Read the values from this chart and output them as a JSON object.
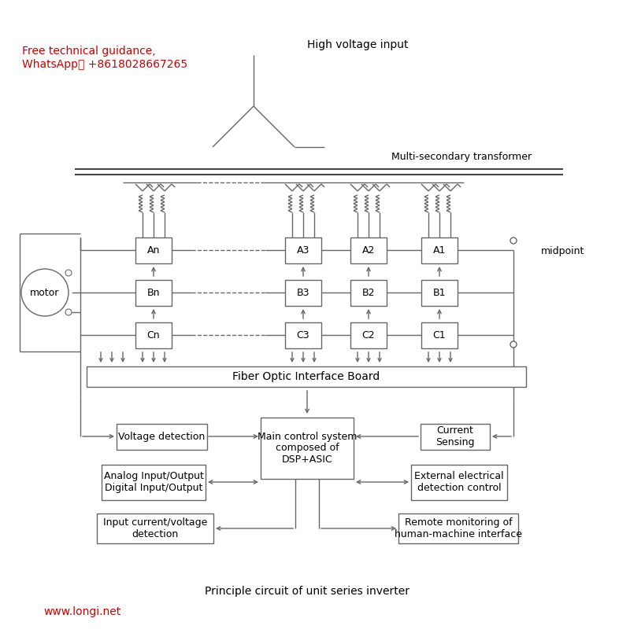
{
  "title": "Principle circuit of unit series inverter",
  "red_text_1": "Free technical guidance,",
  "red_text_2": "WhatsApp： +8618028667265",
  "website": "www.longi.net",
  "hv_label": "High voltage input",
  "transformer_label": "Multi-secondary transformer",
  "fiber_board_label": "Fiber Optic Interface Board",
  "motor_label": "motor",
  "midpoint_label": "midpoint",
  "dsp_label": "Main control system\ncomposed of\nDSP+ASIC",
  "voltage_det_label": "Voltage detection",
  "current_sensing_label": "Current\nSensing",
  "analog_io_label": "Analog Input/Output\nDigital Input/Output",
  "ext_elec_label": "External electrical\ndetection control",
  "input_curr_label": "Input current/voltage\ndetection",
  "remote_label": "Remote monitoring of\nhuman-machine interface",
  "unit_labels_row1": [
    "An",
    "A3",
    "A2",
    "A1"
  ],
  "unit_labels_row2": [
    "Bn",
    "B3",
    "B2",
    "B1"
  ],
  "unit_labels_row3": [
    "Cn",
    "C3",
    "C2",
    "C1"
  ],
  "line_color": "#666666",
  "bg_color": "#ffffff",
  "red_color": "#cc0000",
  "dpi": 100,
  "figw": 8.0,
  "figh": 8.05
}
